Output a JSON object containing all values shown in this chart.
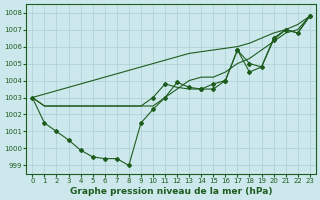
{
  "x": [
    0,
    1,
    2,
    3,
    4,
    5,
    6,
    7,
    8,
    9,
    10,
    11,
    12,
    13,
    14,
    15,
    16,
    17,
    18,
    19,
    20,
    21,
    22,
    23
  ],
  "line_zigzag": [
    1003.0,
    1001.5,
    1001.0,
    1000.5,
    999.9,
    999.5,
    999.4,
    999.4,
    999.0,
    1001.5,
    1002.3,
    1003.0,
    1003.9,
    1003.6,
    1003.5,
    1003.5,
    1004.0,
    1005.8,
    1004.5,
    1004.8,
    1006.4,
    1007.0,
    1006.8,
    1007.8
  ],
  "line_flat": [
    1003.0,
    1002.5,
    1002.5,
    1002.5,
    1002.5,
    1002.5,
    1002.5,
    1002.5,
    1002.5,
    1002.5,
    1002.5,
    1003.0,
    1003.5,
    1004.0,
    1004.2,
    1004.2,
    1004.5,
    1005.0,
    1005.3,
    1005.8,
    1006.3,
    1006.8,
    1007.0,
    1007.8
  ],
  "line_straight": [
    1003.0,
    1003.2,
    1003.4,
    1003.6,
    1003.8,
    1004.0,
    1004.2,
    1004.4,
    1004.6,
    1004.8,
    1005.0,
    1005.2,
    1005.4,
    1005.6,
    1005.7,
    1005.8,
    1005.9,
    1006.0,
    1006.2,
    1006.5,
    1006.8,
    1007.0,
    1007.3,
    1007.8
  ],
  "line_upper": [
    1003.0,
    1002.5,
    1002.5,
    1002.5,
    1002.5,
    1002.5,
    1002.5,
    1002.5,
    1002.5,
    1002.5,
    1003.0,
    1003.8,
    1003.6,
    1003.5,
    1003.5,
    1003.8,
    1004.0,
    1005.8,
    1005.0,
    1004.8,
    1006.5,
    1007.0,
    1006.8,
    1007.8
  ],
  "background_color": "#cce8ec",
  "grid_color": "#aacfd4",
  "line_color": "#1e5c1e",
  "ylim": [
    998.5,
    1008.5
  ],
  "xlim": [
    -0.5,
    23.5
  ],
  "yticks": [
    999,
    1000,
    1001,
    1002,
    1003,
    1004,
    1005,
    1006,
    1007,
    1008
  ],
  "xticks": [
    0,
    1,
    2,
    3,
    4,
    5,
    6,
    7,
    8,
    9,
    10,
    11,
    12,
    13,
    14,
    15,
    16,
    17,
    18,
    19,
    20,
    21,
    22,
    23
  ],
  "xlabel": "Graphe pression niveau de la mer (hPa)",
  "marker": "D",
  "marker_size": 2.0,
  "tick_fontsize": 5.0,
  "label_fontsize": 6.5,
  "linewidth": 0.8
}
